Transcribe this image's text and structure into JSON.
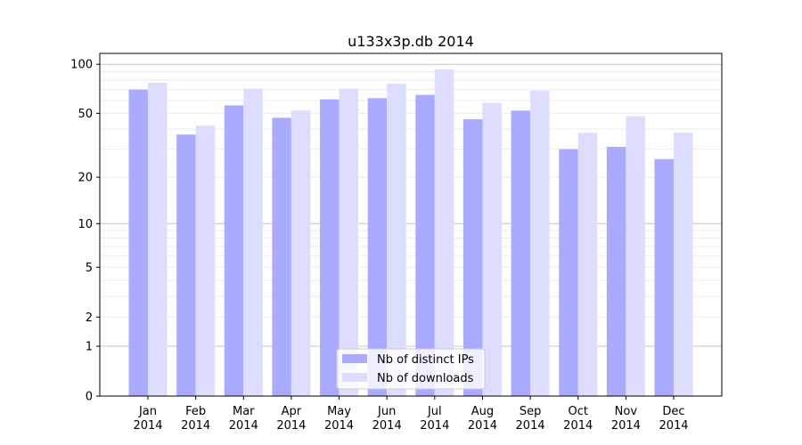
{
  "chart_data": {
    "type": "bar",
    "title": "u133x3p.db 2014",
    "xlabel": "",
    "ylabel": "",
    "yscale": "log(1+x)",
    "ylim": [
      0,
      110
    ],
    "yticks": [
      0,
      1,
      2,
      5,
      10,
      20,
      50,
      100
    ],
    "ytick_labels": [
      "0",
      "1",
      "2",
      "5",
      "10",
      "20",
      "50",
      "100"
    ],
    "categories": [
      "Jan\n2014",
      "Feb\n2014",
      "Mar\n2014",
      "Apr\n2014",
      "May\n2014",
      "Jun\n2014",
      "Jul\n2014",
      "Aug\n2014",
      "Sep\n2014",
      "Oct\n2014",
      "Nov\n2014",
      "Dec\n2014"
    ],
    "series": [
      {
        "name": "Nb of distinct IPs",
        "color": "#aaaaff",
        "values": [
          70,
          37,
          56,
          47,
          61,
          62,
          65,
          46,
          52,
          30,
          31,
          26
        ]
      },
      {
        "name": "Nb of downloads",
        "color": "#ddddff",
        "values": [
          77,
          42,
          71,
          52,
          71,
          76,
          93,
          58,
          69,
          38,
          48,
          38
        ]
      }
    ],
    "grid": true,
    "legend_position": "lower center"
  }
}
